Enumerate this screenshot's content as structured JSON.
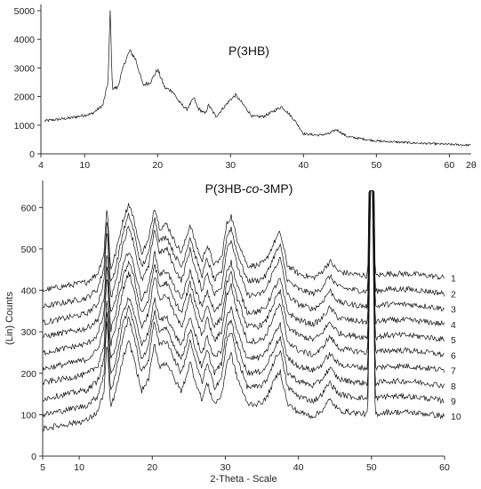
{
  "chart_data": [
    {
      "type": "line",
      "title": "P(3HB)",
      "xlabel": "2θ",
      "ylabel": "",
      "xlim": [
        4,
        63
      ],
      "ylim": [
        0,
        5000
      ],
      "xticks": [
        4,
        10,
        20,
        30,
        40,
        50,
        60
      ],
      "yticks": [
        0,
        1000,
        2000,
        3000,
        4000,
        5000
      ],
      "grid": false,
      "series": [
        {
          "x": [
            4.5,
            8,
            11,
            12.5,
            13.2,
            13.5,
            13.8,
            14.5,
            15.5,
            16.2,
            17,
            18,
            19,
            20,
            21,
            22,
            23,
            24,
            25,
            25.5,
            26.5,
            27,
            28,
            29,
            30,
            30.7,
            31.5,
            33,
            34.5,
            36,
            37,
            38,
            39,
            40,
            42,
            43.5,
            44.5,
            46,
            50,
            55,
            60,
            63
          ],
          "y": [
            1150,
            1250,
            1400,
            1700,
            2500,
            5000,
            2300,
            2300,
            3200,
            3600,
            3300,
            2400,
            2500,
            2950,
            2300,
            2200,
            1800,
            1550,
            1950,
            1600,
            1400,
            1700,
            1300,
            1600,
            1900,
            2050,
            1800,
            1300,
            1300,
            1500,
            1650,
            1400,
            1100,
            700,
            650,
            700,
            850,
            600,
            450,
            380,
            330,
            300
          ]
        }
      ]
    },
    {
      "type": "line",
      "title": "P(3HB-co-3MP)",
      "xlabel": "2-Theta - Scale",
      "ylabel": "(Lin) Counts",
      "xlim": [
        5,
        60
      ],
      "ylim": [
        0,
        650
      ],
      "xticks": [
        5,
        10,
        20,
        30,
        40,
        50,
        60
      ],
      "yticks": [
        0,
        100,
        200,
        300,
        400,
        500,
        600
      ],
      "grid": false,
      "series": [
        {
          "name": "1",
          "offset": 430
        },
        {
          "name": "2",
          "offset": 392
        },
        {
          "name": "3",
          "offset": 355
        },
        {
          "name": "4",
          "offset": 318
        },
        {
          "name": "5",
          "offset": 281
        },
        {
          "name": "6",
          "offset": 244
        },
        {
          "name": "7",
          "offset": 207
        },
        {
          "name": "8",
          "offset": 170
        },
        {
          "name": "9",
          "offset": 133
        },
        {
          "name": "10",
          "offset": 96
        }
      ],
      "shape": {
        "x": [
          5,
          8,
          11,
          12.5,
          13.4,
          13.8,
          14.3,
          15,
          16,
          16.8,
          17.5,
          18.5,
          19.5,
          20.3,
          21,
          22,
          23,
          24,
          25.2,
          25.8,
          26.8,
          27.5,
          28.5,
          29.5,
          30.2,
          30.8,
          31.5,
          33,
          34.5,
          35.5,
          36.8,
          37.5,
          38.5,
          40,
          42,
          43,
          44.3,
          45.5,
          47,
          49.5,
          49.9,
          50.1,
          50.5,
          52,
          55,
          58,
          60
        ],
        "y": [
          -30,
          -20,
          -10,
          10,
          60,
          180,
          20,
          60,
          140,
          180,
          140,
          60,
          90,
          175,
          120,
          130,
          90,
          60,
          130,
          90,
          40,
          80,
          30,
          50,
          130,
          150,
          100,
          30,
          30,
          40,
          90,
          110,
          30,
          10,
          0,
          10,
          40,
          15,
          10,
          5,
          600,
          600,
          5,
          10,
          10,
          5,
          0
        ]
      }
    }
  ]
}
